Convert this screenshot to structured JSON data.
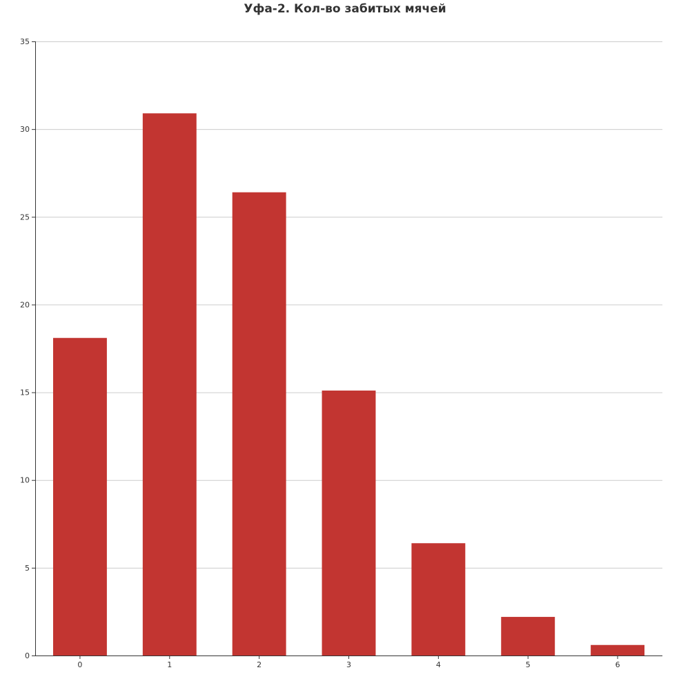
{
  "chart_data": {
    "type": "bar",
    "title": "Уфа-2. Кол-во забитых мячей",
    "xlabel": "",
    "ylabel": "",
    "categories": [
      "0",
      "1",
      "2",
      "3",
      "4",
      "5",
      "6"
    ],
    "values": [
      18.1,
      30.9,
      26.4,
      15.1,
      6.4,
      2.2,
      0.6
    ],
    "ylim": [
      0,
      35
    ],
    "yticks": [
      "0",
      "5",
      "10",
      "15",
      "20",
      "25",
      "30",
      "35"
    ],
    "grid": true,
    "legend": "none",
    "bar_color": "#c23531",
    "grid_color": "#cccccc",
    "axis_color": "#333333"
  }
}
